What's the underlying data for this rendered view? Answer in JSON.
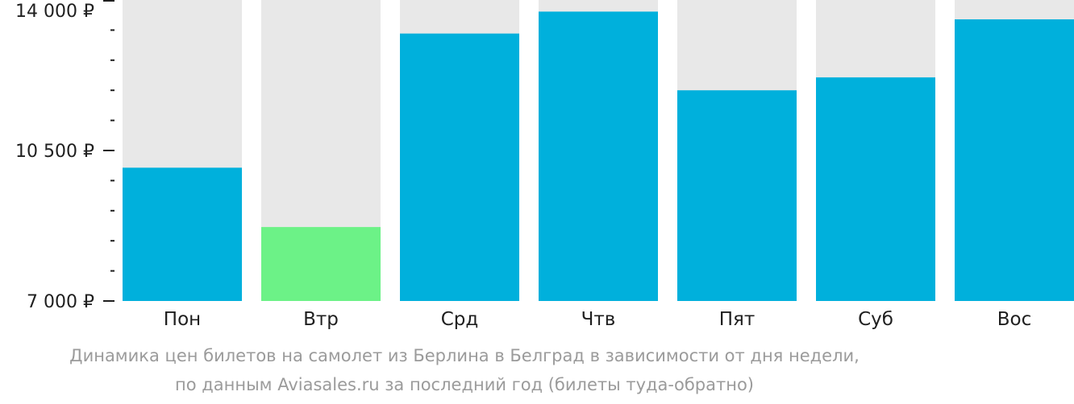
{
  "chart_data": {
    "type": "bar",
    "categories": [
      "Пон",
      "Втр",
      "Срд",
      "Чтв",
      "Пят",
      "Суб",
      "Вос"
    ],
    "values": [
      10100,
      8720,
      13220,
      13730,
      11900,
      12200,
      13550
    ],
    "ylim": [
      7000,
      14000
    ],
    "ytick_labels": [
      {
        "value": 14000,
        "label": "14 000 ₽"
      },
      {
        "value": 10500,
        "label": "10 500 ₽"
      },
      {
        "value": 7000,
        "label": "7 000 ₽"
      }
    ],
    "minor_tick_step": 700,
    "highlight_index": 1,
    "colors": {
      "bar": "#00b0dc",
      "highlight": "#6cf287",
      "track": "#e8e8e8",
      "axis": "#1f1f1f",
      "caption": "#9b9b9b"
    },
    "caption": {
      "line1": "Динамика цен билетов на самолет из Берлина в Белград в зависимости от дня недели,",
      "line2": "по данным Aviasales.ru за последний год (билеты туда-обратно)"
    }
  }
}
